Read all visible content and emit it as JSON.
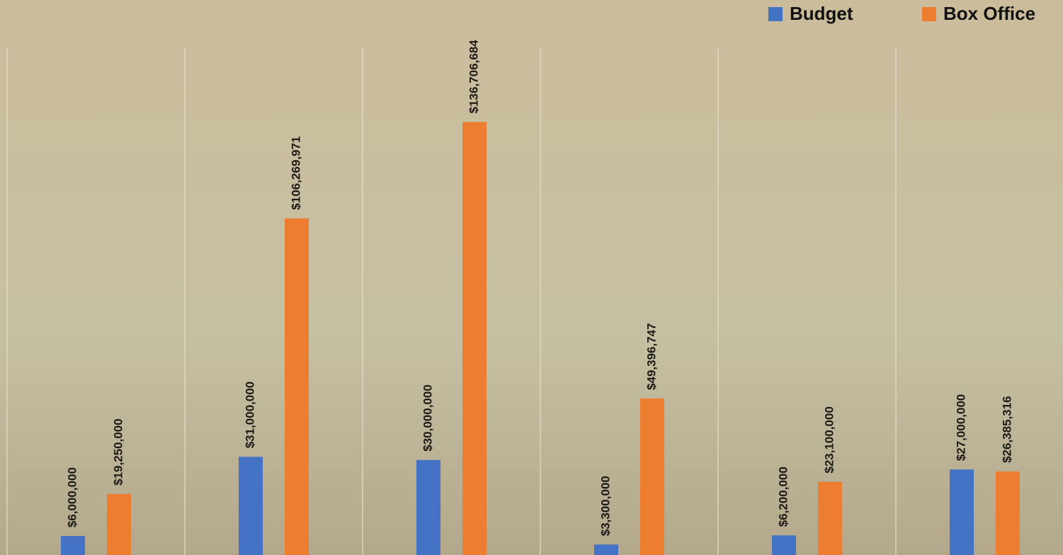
{
  "chart_data": {
    "type": "bar",
    "categories": [
      null,
      null,
      null,
      null,
      null,
      null
    ],
    "series": [
      {
        "name": "Budget",
        "color": "#4472c4",
        "values": [
          6000000,
          31000000,
          30000000,
          3300000,
          6200000,
          27000000
        ],
        "value_labels": [
          "$6,000,000",
          "$31,000,000",
          "$30,000,000",
          "$3,300,000",
          "$6,200,000",
          "$27,000,000"
        ]
      },
      {
        "name": "Box Office",
        "color": "#ed7d31",
        "values": [
          19250000,
          106269971,
          136706684,
          49396747,
          23100000,
          26385316
        ],
        "value_labels": [
          "$19,250,000",
          "$106,269,971",
          "$136,706,684",
          "$49,396,747",
          "$23,100,000",
          "$26,385,316"
        ]
      }
    ],
    "ylim": [
      0,
      160000000
    ],
    "legend": "top-right"
  }
}
